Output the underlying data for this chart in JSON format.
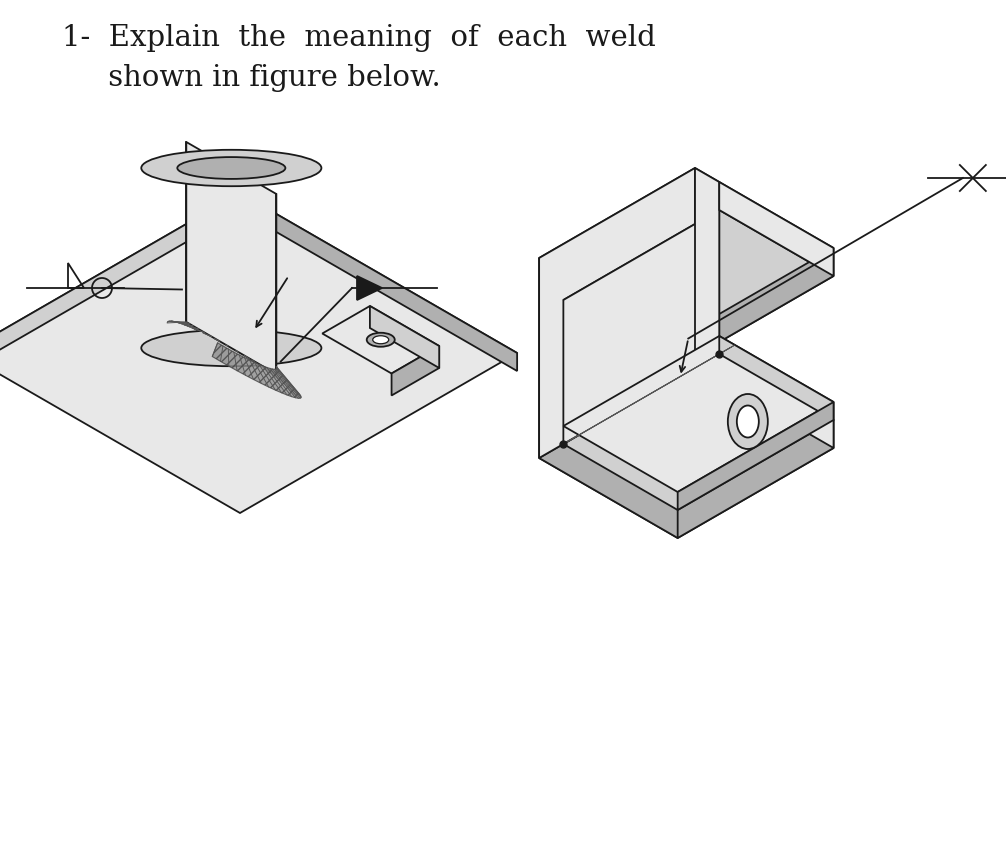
{
  "bg_color": "#ffffff",
  "line_color": "#1a1a1a",
  "fig_width": 10.06,
  "fig_height": 8.54,
  "title_line1": "1-  Explain  the  meaning  of  each  weld",
  "title_line2": "     shown in figure below.",
  "title_fontsize": 21,
  "light_gray": "#e8e8e8",
  "mid_gray": "#d0d0d0",
  "dark_gray": "#b0b0b0",
  "weld_gray": "#909090"
}
